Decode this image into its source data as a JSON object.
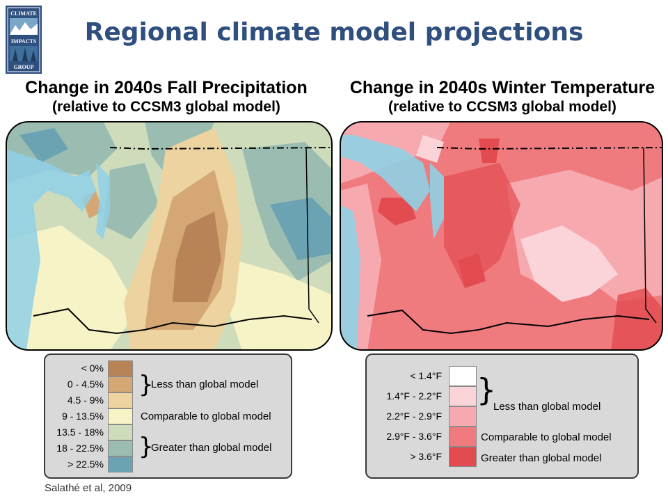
{
  "title": "Regional climate model projections",
  "logo": {
    "text_lines": [
      "CLIMATE",
      "IMPACTS",
      "GROUP"
    ]
  },
  "left_panel": {
    "heading_line1": "Change in 2040s Fall Precipitation",
    "heading_line2": "(relative to CCSM3 global model)",
    "legend": {
      "classes": [
        {
          "label": "< 0%",
          "color": "#b98358"
        },
        {
          "label": "0 - 4.5%",
          "color": "#d4a774"
        },
        {
          "label": "4.5 - 9%",
          "color": "#ecd39f"
        },
        {
          "label": "9 - 13.5%",
          "color": "#f6f3c6"
        },
        {
          "label": "13.5 - 18%",
          "color": "#cfdcbc"
        },
        {
          "label": "18 - 22.5%",
          "color": "#9bbcb1"
        },
        {
          "label": "> 22.5%",
          "color": "#6ba3b2"
        }
      ],
      "groups": {
        "less": "Less than global model",
        "comparable": "Comparable to global model",
        "greater": "Greater than global model"
      }
    }
  },
  "right_panel": {
    "heading_line1": "Change in 2040s Winter Temperature",
    "heading_line2": "(relative to CCSM3 global model)",
    "legend": {
      "classes": [
        {
          "label": "< 1.4°F",
          "color": "#ffffff"
        },
        {
          "label": "1.4°F - 2.2°F",
          "color": "#fbd4da"
        },
        {
          "label": "2.2°F - 2.9°F",
          "color": "#f7a9b0"
        },
        {
          "label": "2.9°F - 3.6°F",
          "color": "#ef7b7f"
        },
        {
          "label": "> 3.6°F",
          "color": "#e24b50"
        }
      ],
      "groups": {
        "less": "Less than global model",
        "comparable": "Comparable to global model",
        "greater": "Greater than global model"
      }
    }
  },
  "citation": "Salathé et al, 2009"
}
